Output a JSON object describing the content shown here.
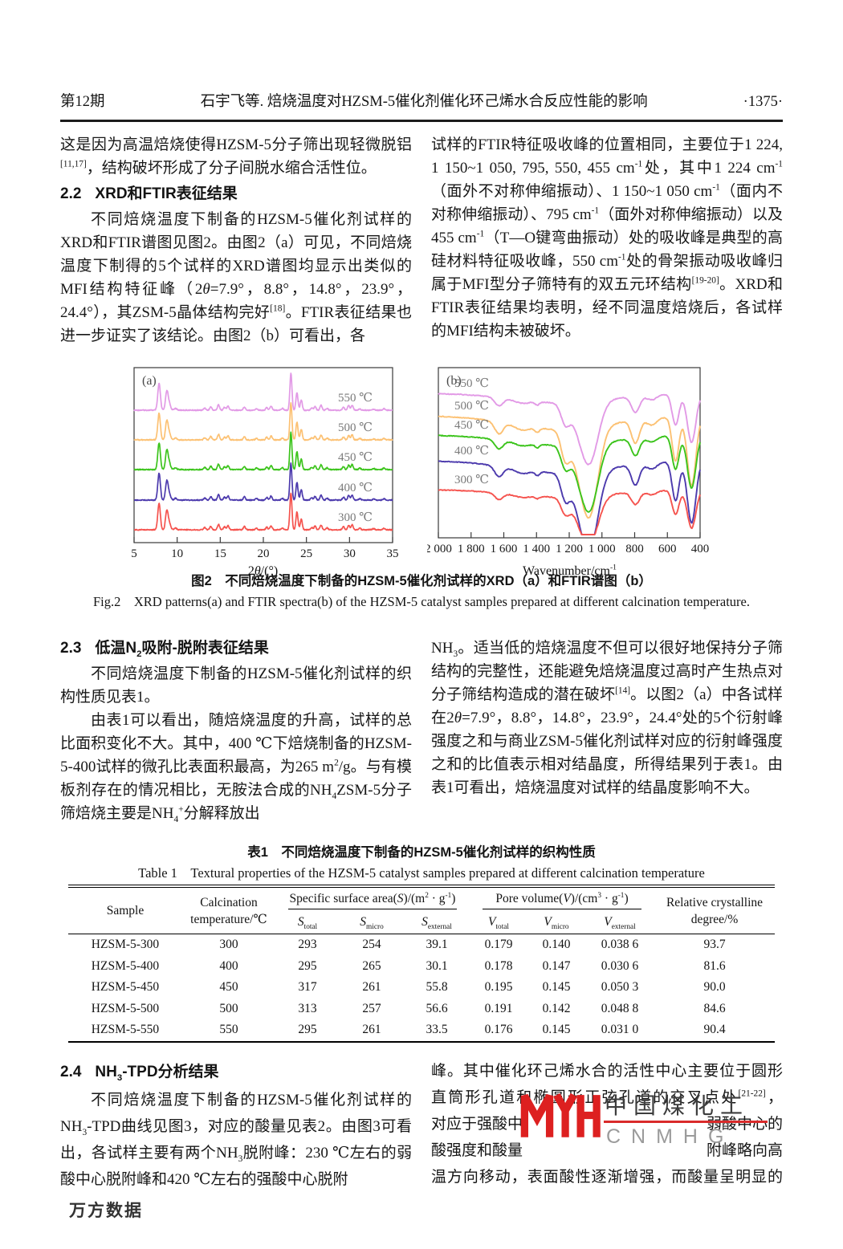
{
  "header": {
    "issue": "第12期",
    "running_title": "石宇飞等. 焙烧温度对HZSM-5催化剂催化环己烯水合反应性能的影响",
    "page_number": "·1375·"
  },
  "s21": {
    "p_tail": "这是因为高温焙烧使得HZSM-5分子筛出现轻微脱铝<sup>[11,17]</sup>，结构破坏形成了分子间脱水缩合活性位。"
  },
  "s22": {
    "num": "2.2",
    "title": "XRD和FTIR表征结果",
    "p1": "不同焙烧温度下制备的HZSM-5催化剂试样的XRD和FTIR谱图见图2。由图2（a）可见，不同焙烧温度下制得的5个试样的XRD谱图均显示出类似的MFI结构特征峰（2<i>θ</i>=7.9°，8.8°，14.8°，23.9°，24.4°），其ZSM-5晶体结构完好<sup>[18]</sup>。FTIR表征结果也进一步证实了该结论。由图2（b）可看出，各",
    "p2": "试样的FTIR特征吸收峰的位置相同，主要位于1 224, 1 150~1 050, 795, 550, 455 cm<sup>-1</sup>处，其中1 224 cm<sup>-1</sup>（面外不对称伸缩振动）、1 150~1 050 cm<sup>-1</sup>（面内不对称伸缩振动）、795 cm<sup>-1</sup>（面外对称伸缩振动）以及455 cm<sup>-1</sup>（T—O键弯曲振动）处的吸收峰是典型的高硅材料特征吸收峰，550 cm<sup>-1</sup>处的骨架振动吸收峰归属于MFI型分子筛特有的双五元环结构<sup>[19-20]</sup>。XRD和FTIR表征结果均表明，经不同温度焙烧后，各试样的MFI结构未被破坏。"
  },
  "fig2": {
    "caption_cn": "图2　不同焙烧温度下制备的HZSM-5催化剂试样的XRD（a）和FTIR谱图（b）",
    "caption_en": "Fig.2　XRD patterns(a) and FTIR spectra(b) of the HZSM-5 catalyst samples prepared at different calcination temperature."
  },
  "s23": {
    "num": "2.3",
    "title": "低温N<sub>2</sub>吸附-脱附表征结果",
    "p1": "不同焙烧温度下制备的HZSM-5催化剂试样的织构性质见表1。",
    "p2": "由表1可以看出，随焙烧温度的升高，试样的总比面积变化不大。其中，400 ℃下焙烧制备的HZSM-5-400试样的微孔比表面积最高，为265 m<sup>2</sup>/g。与有模板剂存在的情况相比，无胺法合成的NH<sub>4</sub>ZSM-5分子筛焙烧主要是NH<sub>4</sub><sup>+</sup>分解释放出",
    "p3": "NH<sub>3</sub>。适当低的焙烧温度不但可以很好地保持分子筛结构的完整性，还能避免焙烧温度过高时产生热点对分子筛结构造成的潜在破坏<sup>[14]</sup>。以图2（a）中各试样在2<i>θ</i>=7.9°，8.8°，14.8°，23.9°，24.4°处的5个衍射峰强度之和与商业ZSM-5催化剂试样对应的衍射峰强度之和的比值表示相对结晶度，所得结果列于表1。由表1可看出，焙烧温度对试样的结晶度影响不大。"
  },
  "table1": {
    "title_cn": "表1　不同焙烧温度下制备的HZSM-5催化剂试样的织构性质",
    "title_en": "Table 1　Textural properties of the HZSM-5 catalyst samples prepared at different calcination temperature",
    "headers": {
      "sample": "Sample",
      "calcination": "Calcination<br>temperature/℃",
      "ssa_group": "Specific surface area(<i>S</i>)/(m<sup>2</sup> · g<sup>-1</sup>)",
      "pv_group": "Pore volume(<i>V</i>)/(cm<sup>3</sup> · g<sup>-1</sup>)",
      "s_total": "<i>S</i><sub>total</sub>",
      "s_micro": "<i>S</i><sub>micro</sub>",
      "s_external": "<i>S</i><sub>external</sub>",
      "v_total": "<i>V</i><sub>total</sub>",
      "v_micro": "<i>V</i><sub>micro</sub>",
      "v_external": "<i>V</i><sub>external</sub>",
      "rc": "Relative crystalline<br>degree/%"
    },
    "rows": [
      [
        "HZSM-5-300",
        "300",
        "293",
        "254",
        "39.1",
        "0.179",
        "0.140",
        "0.038 6",
        "93.7"
      ],
      [
        "HZSM-5-400",
        "400",
        "295",
        "265",
        "30.1",
        "0.178",
        "0.147",
        "0.030 6",
        "81.6"
      ],
      [
        "HZSM-5-450",
        "450",
        "317",
        "261",
        "55.8",
        "0.195",
        "0.145",
        "0.050 3",
        "90.0"
      ],
      [
        "HZSM-5-500",
        "500",
        "313",
        "257",
        "56.6",
        "0.191",
        "0.142",
        "0.048 8",
        "84.6"
      ],
      [
        "HZSM-5-550",
        "550",
        "295",
        "261",
        "33.5",
        "0.176",
        "0.145",
        "0.031 0",
        "90.4"
      ]
    ]
  },
  "s24": {
    "num": "2.4",
    "title": "NH<sub>3</sub>-TPD分析结果",
    "p1": "不同焙烧温度下制备的HZSM-5催化剂试样的NH<sub>3</sub>-TPD曲线见图3，对应的酸量见表2。由图3可看出，各试样主要有两个NH<sub>3</sub>脱附峰：230 ℃左右的弱酸中心脱附峰和420 ℃左右的强酸中心脱附",
    "right_lines": [
      {
        "full": "峰。其中催化环己烯水合的活性中心主要位于圆形"
      },
      {
        "full": "直筒形孔道和椭圆形正弦孔道的交叉点处<sup>[21-22]</sup>，"
      },
      {
        "left": "对应于强酸中",
        "right": "弱酸中心的"
      },
      {
        "left": "酸强度和酸量",
        "right": "附峰略向高"
      },
      {
        "full": "温方向移动，表面酸性逐渐增强，而酸量呈明显的"
      }
    ]
  },
  "watermark": {
    "name_cn": "中国煤化工",
    "name_en": "CNMHG",
    "logo_color": "#dd2020"
  },
  "footer": {
    "brand": "万方数据"
  },
  "chart_data": [
    {
      "type": "line",
      "panel_label": "(a)",
      "xlabel_html": "2<i>θ</i>/(°)",
      "xlabel": "2θ/(°)",
      "xlim": [
        5,
        35
      ],
      "x_ticks": [
        5,
        10,
        15,
        20,
        25,
        30,
        35
      ],
      "description": "XRD patterns, 5 stacked traces with MFI characteristic peaks",
      "peaks_2theta_relintensity": [
        [
          7.9,
          0.72
        ],
        [
          8.8,
          0.52
        ],
        [
          9.1,
          0.16
        ],
        [
          9.8,
          0.05
        ],
        [
          13.2,
          0.06
        ],
        [
          13.9,
          0.09
        ],
        [
          14.8,
          0.15
        ],
        [
          15.5,
          0.08
        ],
        [
          15.9,
          0.11
        ],
        [
          17.8,
          0.09
        ],
        [
          19.2,
          0.04
        ],
        [
          20.4,
          0.07
        ],
        [
          20.9,
          0.11
        ],
        [
          22.2,
          0.05
        ],
        [
          23.2,
          1.0
        ],
        [
          23.9,
          0.48
        ],
        [
          24.4,
          0.28
        ],
        [
          25.6,
          0.06
        ],
        [
          26.0,
          0.1
        ],
        [
          26.7,
          0.13
        ],
        [
          27.4,
          0.05
        ],
        [
          29.3,
          0.08
        ],
        [
          29.9,
          0.12
        ],
        [
          30.3,
          0.14
        ],
        [
          31.2,
          0.04
        ],
        [
          32.8,
          0.03
        ],
        [
          34.0,
          0.04
        ]
      ],
      "series": [
        {
          "name": "550 ℃",
          "color": "#e29ae6"
        },
        {
          "name": "500 ℃",
          "color": "#fcc173"
        },
        {
          "name": "450 ℃",
          "color": "#3cc41c"
        },
        {
          "name": "400 ℃",
          "color": "#4c3aad"
        },
        {
          "name": "300 ℃",
          "color": "#f5534e"
        }
      ],
      "legend_side": "right"
    },
    {
      "type": "line",
      "panel_label": "(b)",
      "xlabel_html": "Wavenumber/cm<sup>-1</sup>",
      "xlabel": "Wavenumber/cm-1",
      "xlim": [
        2000,
        400
      ],
      "x_ticks": [
        2000,
        1800,
        1600,
        1400,
        1200,
        1000,
        800,
        600,
        400
      ],
      "x_tick_labels": [
        "2 000",
        "1 800",
        "1 600",
        "1 400",
        "1 200",
        "1 000",
        "800",
        "600",
        "400"
      ],
      "description": "FTIR transmittance spectra, 5 stacked traces; bands at 1630, 1224, ~1075, 795, 550, 455 cm-1",
      "absorption_bands_center_sigma_depth": [
        [
          1630,
          26,
          0.14
        ],
        [
          1490,
          45,
          0.05
        ],
        [
          1395,
          13,
          0.05
        ],
        [
          1224,
          27,
          0.32
        ],
        [
          1150,
          45,
          0.22
        ],
        [
          1075,
          52,
          1.0
        ],
        [
          795,
          25,
          0.27
        ],
        [
          695,
          30,
          0.08
        ],
        [
          550,
          21,
          0.52
        ],
        [
          452,
          26,
          0.82
        ],
        [
          1250,
          300,
          0.16
        ]
      ],
      "series": [
        {
          "name": "550 ℃",
          "color": "#e29ae6"
        },
        {
          "name": "500 ℃",
          "color": "#fcc173"
        },
        {
          "name": "450 ℃",
          "color": "#3cc41c"
        },
        {
          "name": "400 ℃",
          "color": "#4c3aad"
        },
        {
          "name": "300 ℃",
          "color": "#f5534e"
        }
      ],
      "legend_side": "left"
    }
  ]
}
